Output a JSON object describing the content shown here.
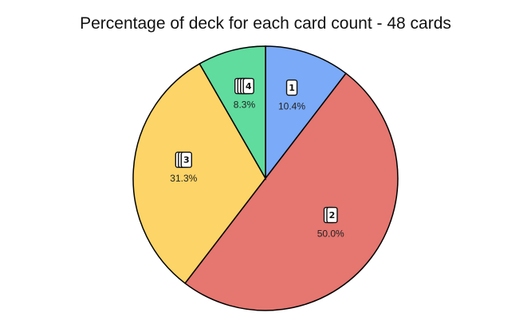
{
  "chart_data": {
    "type": "pie",
    "title": "Percentage of deck for each card count - 48 cards",
    "categories": [
      "1",
      "2",
      "3",
      "4"
    ],
    "values": [
      10.4,
      50.0,
      31.3,
      8.3
    ],
    "labels": [
      "10.4%",
      "50.0%",
      "31.3%",
      "8.3%"
    ],
    "colors": [
      "#7aaaf8",
      "#e57670",
      "#fdd467",
      "#5fdc9e"
    ],
    "start_angle": "12 o'clock",
    "direction": "clockwise",
    "legend": "none"
  }
}
